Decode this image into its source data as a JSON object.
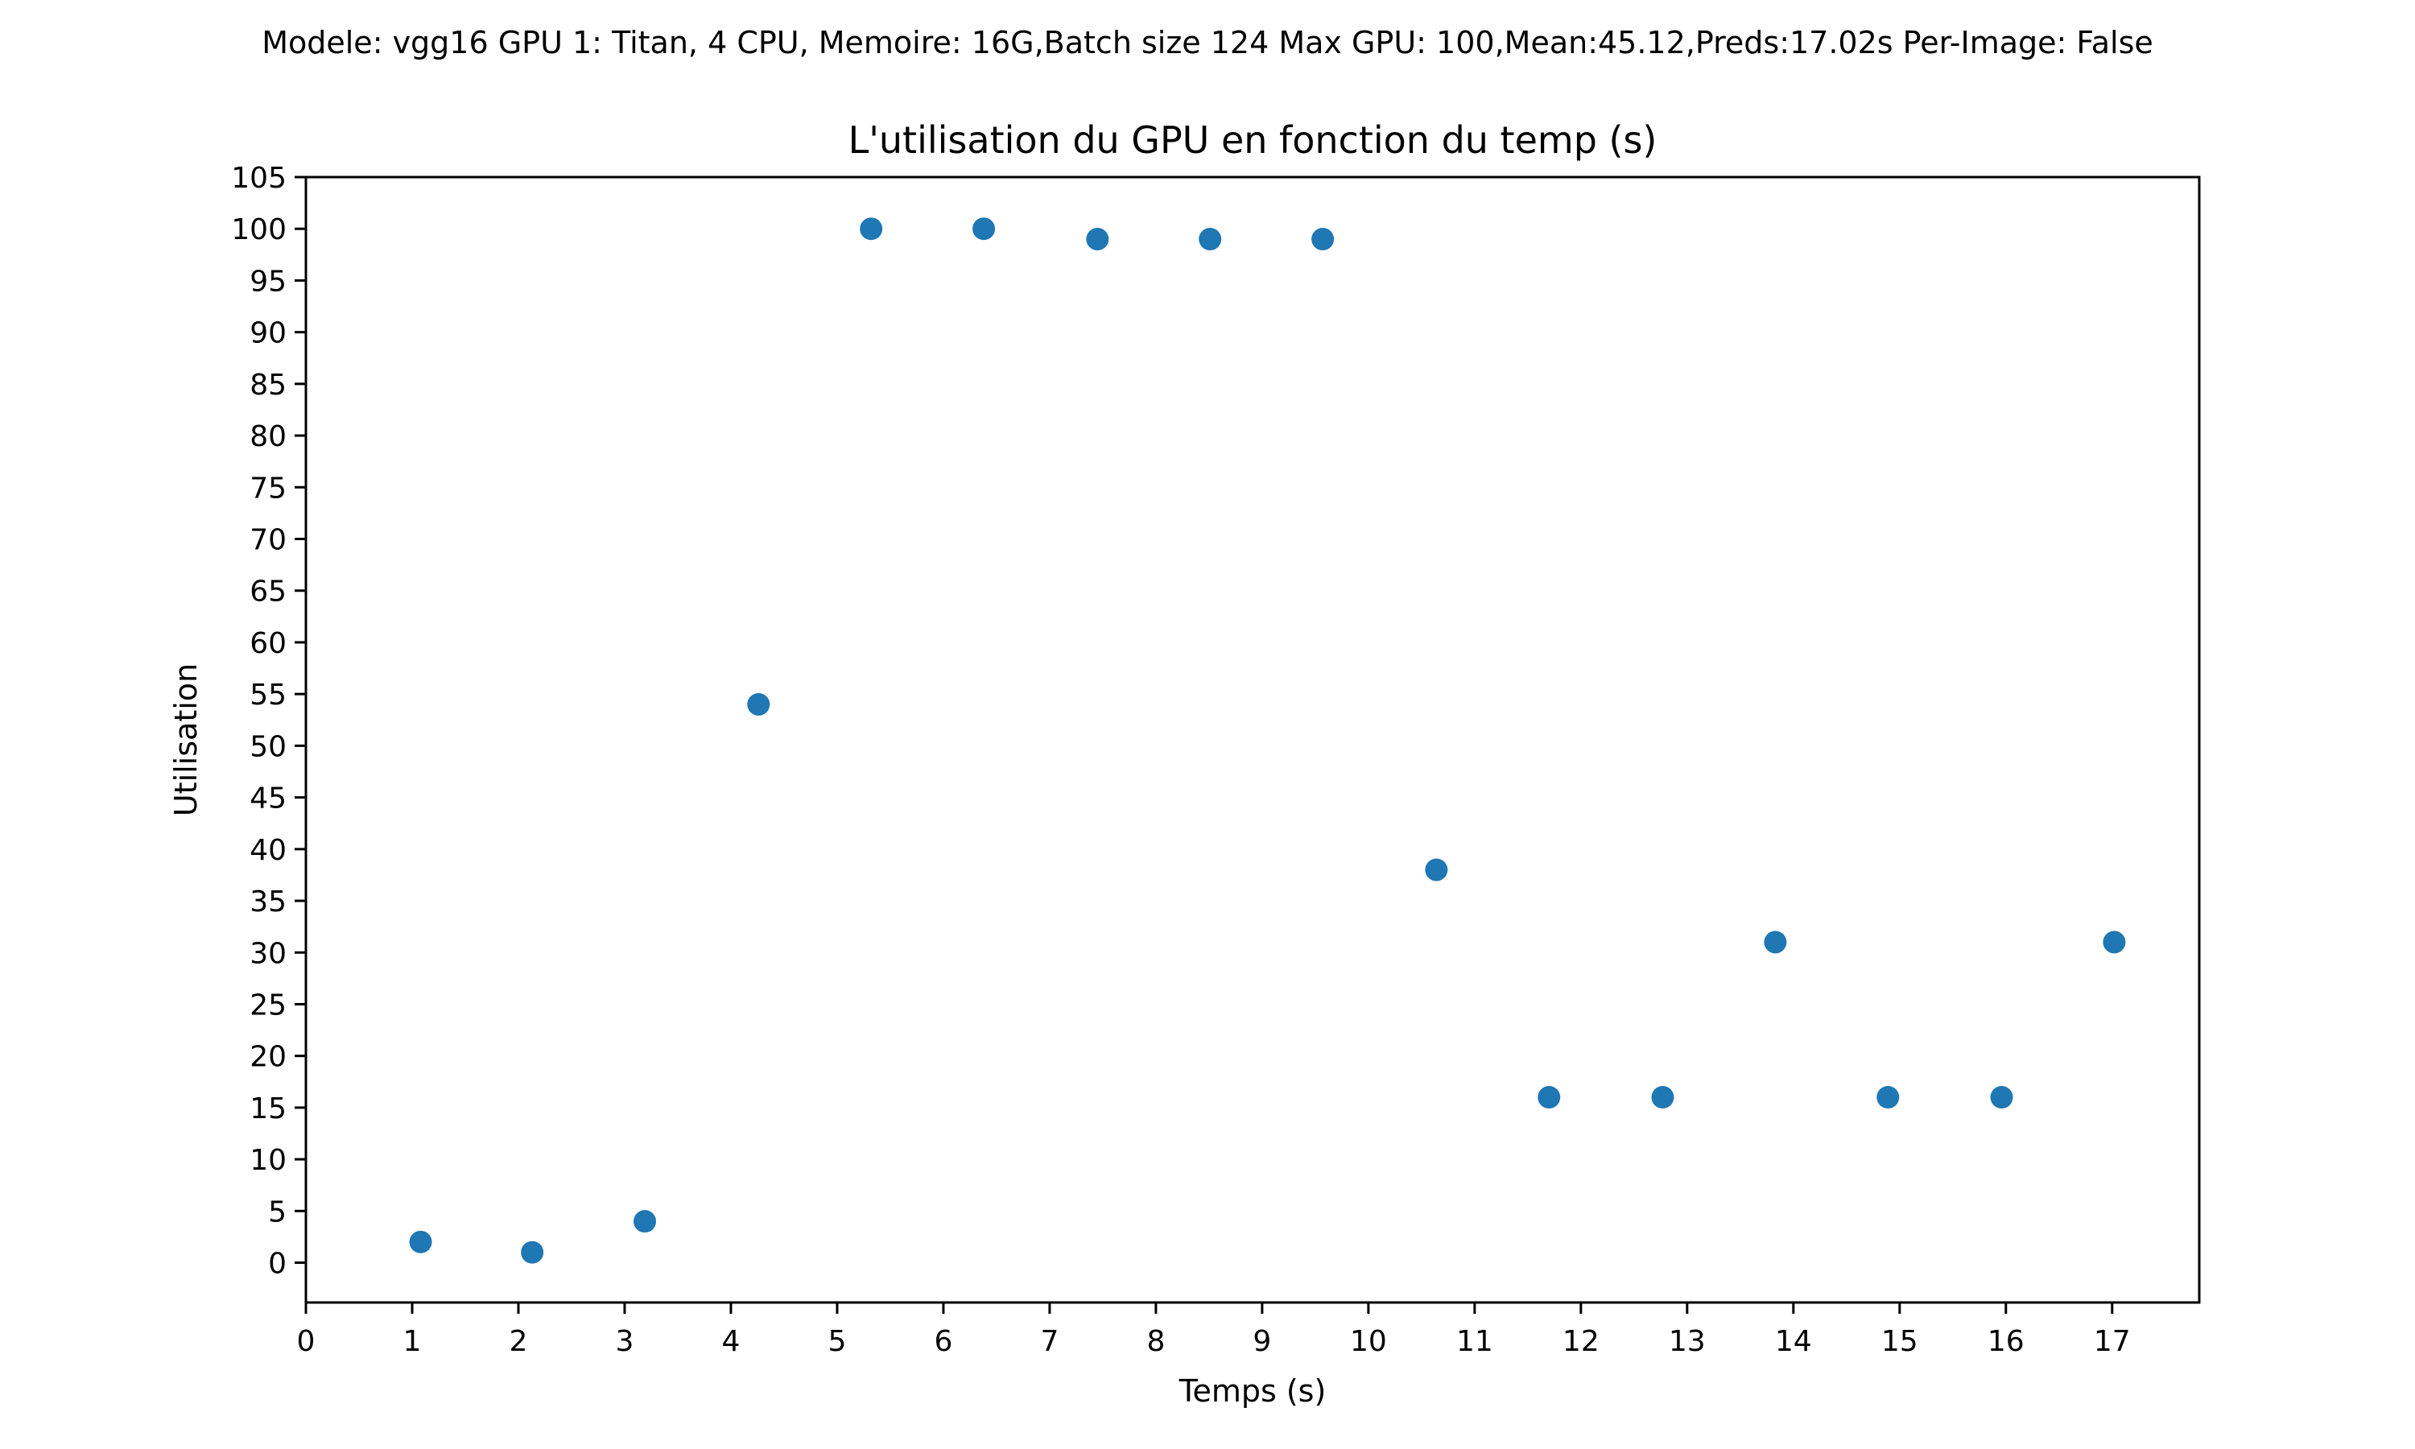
{
  "figure": {
    "suptitle": "Modele: vgg16 GPU 1: Titan, 4 CPU, Memoire: 16G,Batch size 124 Max GPU: 100,Mean:45.12,Preds:17.02s Per-Image: False"
  },
  "chart_data": {
    "type": "scatter",
    "title": "L'utilisation du GPU  en fonction du temp (s)",
    "xlabel": "Temps (s)",
    "ylabel": "Utilisation",
    "xlim": [
      0,
      17.82
    ],
    "ylim": [
      -3.85,
      105
    ],
    "xticks": [
      0,
      1,
      2,
      3,
      4,
      5,
      6,
      7,
      8,
      9,
      10,
      11,
      12,
      13,
      14,
      15,
      16,
      17
    ],
    "yticks": [
      0,
      5,
      10,
      15,
      20,
      25,
      30,
      35,
      40,
      45,
      50,
      55,
      60,
      65,
      70,
      75,
      80,
      85,
      90,
      95,
      100,
      105
    ],
    "grid": false,
    "marker_color": "#1f77b4",
    "series": [
      {
        "points": [
          {
            "x": 1.08,
            "y": 2
          },
          {
            "x": 2.13,
            "y": 1
          },
          {
            "x": 3.19,
            "y": 4
          },
          {
            "x": 4.26,
            "y": 54
          },
          {
            "x": 5.32,
            "y": 100
          },
          {
            "x": 6.38,
            "y": 100
          },
          {
            "x": 7.45,
            "y": 99
          },
          {
            "x": 8.51,
            "y": 99
          },
          {
            "x": 9.57,
            "y": 99
          },
          {
            "x": 10.64,
            "y": 38
          },
          {
            "x": 11.7,
            "y": 16
          },
          {
            "x": 12.77,
            "y": 16
          },
          {
            "x": 13.83,
            "y": 31
          },
          {
            "x": 14.89,
            "y": 16
          },
          {
            "x": 15.96,
            "y": 16
          },
          {
            "x": 17.02,
            "y": 31
          }
        ]
      }
    ]
  }
}
